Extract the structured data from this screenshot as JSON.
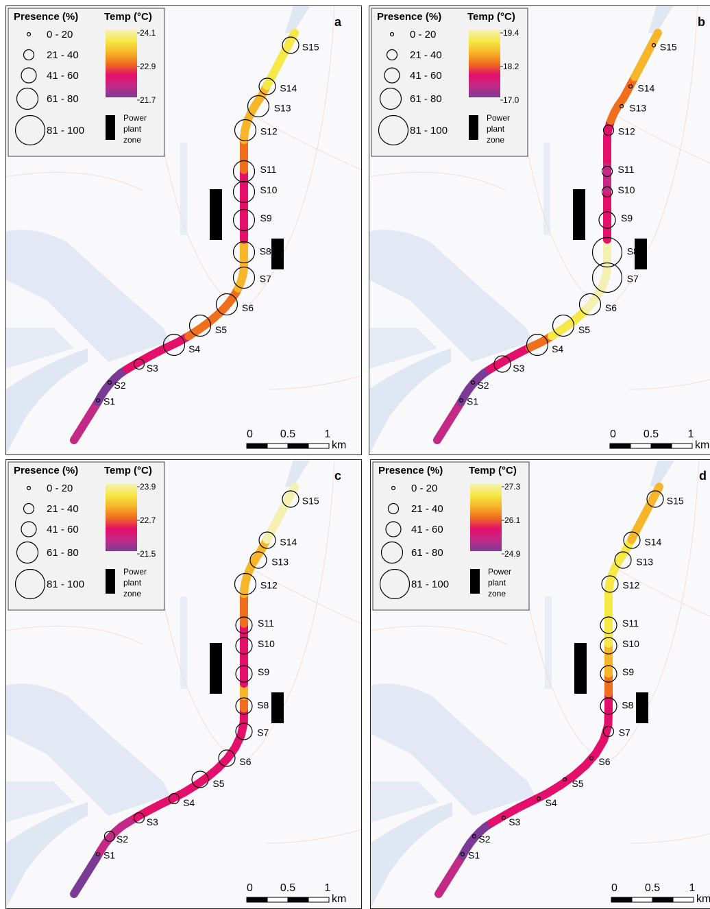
{
  "legend": {
    "presence_title": "Presence (%)",
    "presence_classes": [
      "0 - 20",
      "21 - 40",
      "41 - 60",
      "61 - 80",
      "81 - 100"
    ],
    "temp_title": "Temp (°C)",
    "power_label": [
      "Power",
      "plant",
      "zone"
    ]
  },
  "scale_bar": {
    "labels": [
      "0",
      "0.5",
      "1"
    ],
    "unit": "km"
  },
  "colors": {
    "ramp": [
      "#f4f1b0",
      "#f6e845",
      "#f7b52a",
      "#ef6f1c",
      "#e40f6b",
      "#c22a86",
      "#7b3a95"
    ],
    "water": "#dfe7f3",
    "land": "#f9f9fb",
    "power_plant": "#000000"
  },
  "panels": [
    {
      "label": "a",
      "temp_ticks": [
        "24.1",
        "22.9",
        "21.7"
      ],
      "sites": [
        {
          "id": "S1",
          "presence": "0 - 20"
        },
        {
          "id": "S2",
          "presence": "0 - 20"
        },
        {
          "id": "S3",
          "presence": "21 - 40"
        },
        {
          "id": "S4",
          "presence": "61 - 80"
        },
        {
          "id": "S5",
          "presence": "61 - 80"
        },
        {
          "id": "S6",
          "presence": "61 - 80"
        },
        {
          "id": "S7",
          "presence": "61 - 80"
        },
        {
          "id": "S8",
          "presence": "61 - 80"
        },
        {
          "id": "S9",
          "presence": "61 - 80"
        },
        {
          "id": "S10",
          "presence": "61 - 80"
        },
        {
          "id": "S11",
          "presence": "61 - 80"
        },
        {
          "id": "S12",
          "presence": "61 - 80"
        },
        {
          "id": "S13",
          "presence": "61 - 80"
        },
        {
          "id": "S14",
          "presence": "41 - 60"
        },
        {
          "id": "S15",
          "presence": "41 - 60"
        }
      ]
    },
    {
      "label": "b",
      "temp_ticks": [
        "19.4",
        "18.2",
        "17.0"
      ],
      "sites": [
        {
          "id": "S1",
          "presence": "0 - 20"
        },
        {
          "id": "S2",
          "presence": "0 - 20"
        },
        {
          "id": "S3",
          "presence": "41 - 60"
        },
        {
          "id": "S4",
          "presence": "61 - 80"
        },
        {
          "id": "S5",
          "presence": "61 - 80"
        },
        {
          "id": "S6",
          "presence": "61 - 80"
        },
        {
          "id": "S7",
          "presence": "81 - 100"
        },
        {
          "id": "S8",
          "presence": "81 - 100"
        },
        {
          "id": "S9",
          "presence": "41 - 60"
        },
        {
          "id": "S10",
          "presence": "21 - 40"
        },
        {
          "id": "S11",
          "presence": "21 - 40"
        },
        {
          "id": "S12",
          "presence": "21 - 40"
        },
        {
          "id": "S13",
          "presence": "0 - 20"
        },
        {
          "id": "S14",
          "presence": "0 - 20"
        },
        {
          "id": "S15",
          "presence": "0 - 20"
        }
      ]
    },
    {
      "label": "c",
      "temp_ticks": [
        "23.9",
        "22.7",
        "21.5"
      ],
      "sites": [
        {
          "id": "S1",
          "presence": "0 - 20"
        },
        {
          "id": "S2",
          "presence": "21 - 40"
        },
        {
          "id": "S3",
          "presence": "21 - 40"
        },
        {
          "id": "S4",
          "presence": "21 - 40"
        },
        {
          "id": "S5",
          "presence": "41 - 60"
        },
        {
          "id": "S6",
          "presence": "41 - 60"
        },
        {
          "id": "S7",
          "presence": "41 - 60"
        },
        {
          "id": "S8",
          "presence": "41 - 60"
        },
        {
          "id": "S9",
          "presence": "41 - 60"
        },
        {
          "id": "S10",
          "presence": "41 - 60"
        },
        {
          "id": "S11",
          "presence": "41 - 60"
        },
        {
          "id": "S12",
          "presence": "61 - 80"
        },
        {
          "id": "S13",
          "presence": "41 - 60"
        },
        {
          "id": "S14",
          "presence": "41 - 60"
        },
        {
          "id": "S15",
          "presence": "41 - 60"
        }
      ]
    },
    {
      "label": "d",
      "temp_ticks": [
        "27.3",
        "26.1",
        "24.9"
      ],
      "sites": [
        {
          "id": "S1",
          "presence": "0 - 20"
        },
        {
          "id": "S2",
          "presence": "0 - 20"
        },
        {
          "id": "S3",
          "presence": "0 - 20"
        },
        {
          "id": "S4",
          "presence": "0 - 20"
        },
        {
          "id": "S5",
          "presence": "0 - 20"
        },
        {
          "id": "S6",
          "presence": "0 - 20"
        },
        {
          "id": "S7",
          "presence": "21 - 40"
        },
        {
          "id": "S8",
          "presence": "41 - 60"
        },
        {
          "id": "S9",
          "presence": "41 - 60"
        },
        {
          "id": "S10",
          "presence": "41 - 60"
        },
        {
          "id": "S11",
          "presence": "41 - 60"
        },
        {
          "id": "S12",
          "presence": "41 - 60"
        },
        {
          "id": "S13",
          "presence": "41 - 60"
        },
        {
          "id": "S14",
          "presence": "41 - 60"
        },
        {
          "id": "S15",
          "presence": "41 - 60"
        }
      ]
    }
  ]
}
